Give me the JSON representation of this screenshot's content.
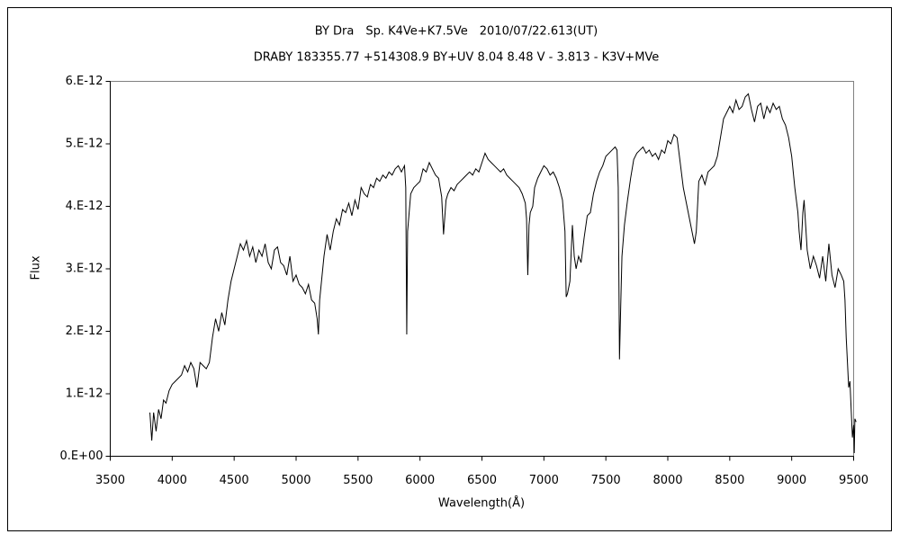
{
  "chart_data": {
    "type": "line",
    "title": "BY Dra　Sp. K4Ve+K7.5Ve　2010/07/22.613(UT)",
    "subtitle": "DRABY 183355.77 +514308.9 BY+UV 8.04 8.48 V - 3.813 - K3V+MVe",
    "x_label": "Wavelength(Å)",
    "y_label": "Flux",
    "color": "#000000",
    "grid": false,
    "xlim": [
      3500,
      9500
    ],
    "xticks": [
      3500,
      4000,
      4500,
      5000,
      5500,
      6000,
      6500,
      7000,
      7500,
      8000,
      8500,
      9000,
      9500
    ],
    "ylim": [
      0,
      6e-12
    ],
    "yticks": [
      {
        "value": 0,
        "label": "0.E+00"
      },
      {
        "value": 1e-12,
        "label": "1.E-12"
      },
      {
        "value": 2e-12,
        "label": "2.E-12"
      },
      {
        "value": 3e-12,
        "label": "3.E-12"
      },
      {
        "value": 4e-12,
        "label": "4.E-12"
      },
      {
        "value": 5e-12,
        "label": "5.E-12"
      },
      {
        "value": 6e-12,
        "label": "6.E-12"
      }
    ],
    "x": [
      3820,
      3835,
      3850,
      3870,
      3890,
      3910,
      3930,
      3950,
      3975,
      4000,
      4025,
      4050,
      4075,
      4100,
      4125,
      4150,
      4175,
      4200,
      4225,
      4250,
      4275,
      4300,
      4325,
      4350,
      4375,
      4400,
      4425,
      4450,
      4475,
      4500,
      4525,
      4550,
      4575,
      4600,
      4625,
      4650,
      4675,
      4700,
      4725,
      4750,
      4775,
      4800,
      4825,
      4850,
      4875,
      4900,
      4925,
      4950,
      4975,
      5000,
      5025,
      5050,
      5075,
      5100,
      5125,
      5150,
      5170,
      5180,
      5190,
      5200,
      5225,
      5250,
      5275,
      5300,
      5325,
      5350,
      5375,
      5400,
      5425,
      5450,
      5475,
      5500,
      5525,
      5550,
      5575,
      5600,
      5625,
      5650,
      5675,
      5700,
      5725,
      5750,
      5775,
      5800,
      5825,
      5850,
      5875,
      5885,
      5893,
      5900,
      5925,
      5950,
      5975,
      6000,
      6025,
      6050,
      6075,
      6100,
      6125,
      6150,
      6175,
      6190,
      6210,
      6225,
      6250,
      6275,
      6300,
      6325,
      6350,
      6375,
      6400,
      6425,
      6450,
      6475,
      6500,
      6525,
      6550,
      6575,
      6600,
      6625,
      6650,
      6675,
      6700,
      6725,
      6750,
      6775,
      6800,
      6825,
      6850,
      6860,
      6870,
      6880,
      6890,
      6910,
      6925,
      6950,
      6975,
      7000,
      7025,
      7050,
      7075,
      7100,
      7125,
      7150,
      7170,
      7180,
      7190,
      7210,
      7230,
      7245,
      7260,
      7280,
      7300,
      7325,
      7350,
      7375,
      7400,
      7425,
      7450,
      7475,
      7500,
      7525,
      7550,
      7575,
      7590,
      7600,
      7610,
      7620,
      7630,
      7650,
      7675,
      7700,
      7725,
      7750,
      7775,
      7800,
      7825,
      7850,
      7875,
      7900,
      7925,
      7950,
      7975,
      8000,
      8025,
      8050,
      8075,
      8100,
      8125,
      8150,
      8175,
      8200,
      8215,
      8230,
      8250,
      8275,
      8300,
      8325,
      8350,
      8375,
      8400,
      8425,
      8450,
      8475,
      8500,
      8525,
      8550,
      8575,
      8600,
      8625,
      8650,
      8675,
      8700,
      8725,
      8750,
      8775,
      8800,
      8825,
      8850,
      8875,
      8900,
      8925,
      8950,
      8975,
      9000,
      9025,
      9050,
      9060,
      9075,
      9090,
      9100,
      9125,
      9150,
      9175,
      9200,
      9225,
      9250,
      9275,
      9300,
      9325,
      9350,
      9375,
      9400,
      9420,
      9430,
      9440,
      9450,
      9460,
      9470,
      9480,
      9490,
      9500,
      9505,
      9510,
      9520
    ],
    "values": [
      7e-13,
      2.5e-13,
      7e-13,
      4e-13,
      7.5e-13,
      6e-13,
      9e-13,
      8.5e-13,
      1.05e-12,
      1.15e-12,
      1.2e-12,
      1.25e-12,
      1.3e-12,
      1.45e-12,
      1.35e-12,
      1.5e-12,
      1.4e-12,
      1.1e-12,
      1.5e-12,
      1.45e-12,
      1.4e-12,
      1.5e-12,
      1.9e-12,
      2.2e-12,
      2e-12,
      2.3e-12,
      2.1e-12,
      2.5e-12,
      2.8e-12,
      3e-12,
      3.2e-12,
      3.4e-12,
      3.3e-12,
      3.45e-12,
      3.2e-12,
      3.35e-12,
      3.1e-12,
      3.3e-12,
      3.2e-12,
      3.4e-12,
      3.1e-12,
      3e-12,
      3.3e-12,
      3.35e-12,
      3.1e-12,
      3.05e-12,
      2.9e-12,
      3.2e-12,
      2.8e-12,
      2.9e-12,
      2.75e-12,
      2.7e-12,
      2.6e-12,
      2.75e-12,
      2.5e-12,
      2.45e-12,
      2.2e-12,
      1.95e-12,
      2.5e-12,
      2.7e-12,
      3.2e-12,
      3.55e-12,
      3.3e-12,
      3.6e-12,
      3.8e-12,
      3.7e-12,
      3.95e-12,
      3.9e-12,
      4.05e-12,
      3.85e-12,
      4.1e-12,
      3.95e-12,
      4.3e-12,
      4.2e-12,
      4.15e-12,
      4.35e-12,
      4.3e-12,
      4.45e-12,
      4.4e-12,
      4.5e-12,
      4.45e-12,
      4.55e-12,
      4.5e-12,
      4.6e-12,
      4.65e-12,
      4.55e-12,
      4.65e-12,
      4.3e-12,
      1.95e-12,
      3.6e-12,
      4.2e-12,
      4.3e-12,
      4.35e-12,
      4.4e-12,
      4.6e-12,
      4.55e-12,
      4.7e-12,
      4.6e-12,
      4.5e-12,
      4.45e-12,
      4.15e-12,
      3.55e-12,
      4.1e-12,
      4.2e-12,
      4.3e-12,
      4.25e-12,
      4.35e-12,
      4.4e-12,
      4.45e-12,
      4.5e-12,
      4.55e-12,
      4.5e-12,
      4.6e-12,
      4.55e-12,
      4.7e-12,
      4.85e-12,
      4.75e-12,
      4.7e-12,
      4.65e-12,
      4.6e-12,
      4.55e-12,
      4.6e-12,
      4.5e-12,
      4.45e-12,
      4.4e-12,
      4.35e-12,
      4.3e-12,
      4.2e-12,
      4.05e-12,
      3.8e-12,
      2.9e-12,
      3.7e-12,
      3.9e-12,
      4e-12,
      4.3e-12,
      4.45e-12,
      4.55e-12,
      4.65e-12,
      4.6e-12,
      4.5e-12,
      4.55e-12,
      4.45e-12,
      4.3e-12,
      4.1e-12,
      3.6e-12,
      2.55e-12,
      2.6e-12,
      2.8e-12,
      3.7e-12,
      3.2e-12,
      3e-12,
      3.2e-12,
      3.1e-12,
      3.5e-12,
      3.85e-12,
      3.9e-12,
      4.2e-12,
      4.4e-12,
      4.55e-12,
      4.65e-12,
      4.8e-12,
      4.85e-12,
      4.9e-12,
      4.95e-12,
      4.9e-12,
      4.3e-12,
      1.55e-12,
      2.4e-12,
      3.2e-12,
      3.7e-12,
      4.1e-12,
      4.45e-12,
      4.75e-12,
      4.85e-12,
      4.9e-12,
      4.95e-12,
      4.85e-12,
      4.9e-12,
      4.8e-12,
      4.85e-12,
      4.75e-12,
      4.9e-12,
      4.85e-12,
      5.05e-12,
      5e-12,
      5.15e-12,
      5.1e-12,
      4.7e-12,
      4.3e-12,
      4.05e-12,
      3.8e-12,
      3.55e-12,
      3.4e-12,
      3.6e-12,
      4.4e-12,
      4.5e-12,
      4.35e-12,
      4.55e-12,
      4.6e-12,
      4.65e-12,
      4.8e-12,
      5.1e-12,
      5.4e-12,
      5.5e-12,
      5.6e-12,
      5.5e-12,
      5.7e-12,
      5.55e-12,
      5.6e-12,
      5.75e-12,
      5.8e-12,
      5.55e-12,
      5.35e-12,
      5.6e-12,
      5.65e-12,
      5.4e-12,
      5.6e-12,
      5.5e-12,
      5.65e-12,
      5.55e-12,
      5.6e-12,
      5.4e-12,
      5.3e-12,
      5.1e-12,
      4.8e-12,
      4.3e-12,
      3.9e-12,
      3.6e-12,
      3.3e-12,
      3.9e-12,
      4.1e-12,
      3.3e-12,
      3e-12,
      3.2e-12,
      3.05e-12,
      2.85e-12,
      3.2e-12,
      2.8e-12,
      3.4e-12,
      2.9e-12,
      2.7e-12,
      3e-12,
      2.9e-12,
      2.8e-12,
      2.5e-12,
      1.9e-12,
      1.5e-12,
      1.1e-12,
      1.2e-12,
      7.5e-13,
      3e-13,
      5e-13,
      5e-14,
      6e-13,
      5.5e-13
    ]
  }
}
